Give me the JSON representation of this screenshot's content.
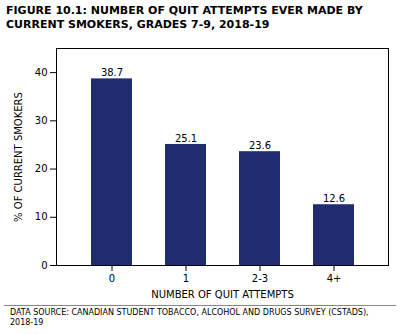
{
  "chart_data": {
    "type": "bar",
    "title": "FIGURE 10.1: NUMBER OF QUIT ATTEMPTS EVER MADE BY\nCURRENT SMOKERS, GRADES 7-9, 2018-19",
    "caption": "DATA SOURCE: CANADIAN STUDENT TOBACCO, ALCOHOL AND DRUGS SURVEY (CSTADS),\n2018-19",
    "xlabel": "NUMBER OF QUIT ATTEMPTS",
    "ylabel": "% OF CURRENT SMOKERS",
    "categories": [
      "0",
      "1",
      "2-3",
      "4+"
    ],
    "values": [
      38.7,
      25.1,
      23.6,
      12.6
    ],
    "color": "#1f2d6e",
    "ylim": [
      0,
      45
    ],
    "yticks": [
      0,
      10,
      20,
      30,
      40
    ],
    "grid": false,
    "data_labels": true
  }
}
